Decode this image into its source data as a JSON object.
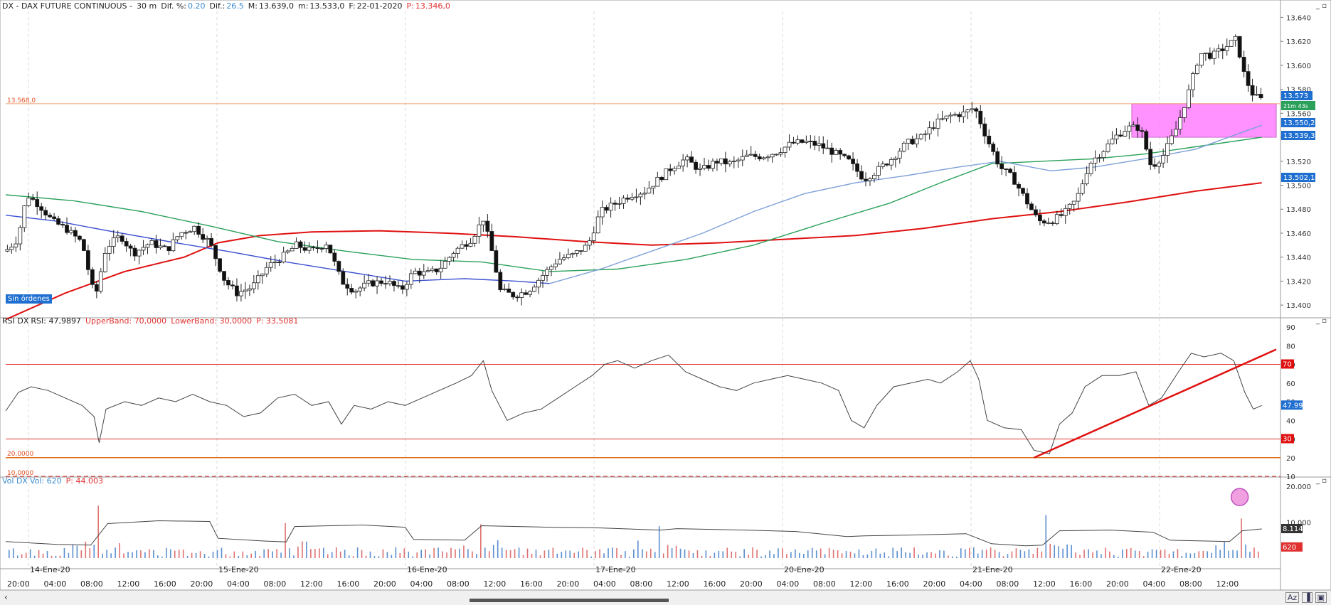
{
  "header": {
    "symbol": "DX - DAX FUTURE CONTINUOUS -",
    "interval": "30 m",
    "dif_pct_label": "Dif. %:",
    "dif_pct_value": "0.20",
    "dif_label": "Dif.:",
    "dif_value": "26.5",
    "max_label": "M:",
    "max_value": "13.639,0",
    "min_label": "m:",
    "min_value": "13.533,0",
    "date_label": "F:",
    "date_value": "22-01-2020",
    "price_label": "P:",
    "price_value": "13.346,0"
  },
  "rsi_header": {
    "name": "RSI DX",
    "rsi": "RSI: 47,9897",
    "upper": "UpperBand: 70,0000",
    "lower": "LowerBand: 30,0000",
    "p": "P: 33,5081"
  },
  "vol_header": {
    "name": "Vol DX",
    "vol": "Vol: 620",
    "p": "P: 44.003"
  },
  "orders_badge": "Sin órdenes",
  "colors": {
    "ma_red": "#e01010",
    "ma_green": "#2aa05a",
    "ma_blue": "#3a4fd0",
    "ma_lightblue": "#7da0d8",
    "zone": "#ff7fff",
    "level": "#f0a070",
    "rsi_band": "#e03030",
    "vol_up": "#5a8fd0",
    "vol_down": "#e07070"
  },
  "price_axis": {
    "ticks": [
      "13.640",
      "13.620",
      "13.600",
      "13.580",
      "13.560",
      "13.540",
      "13.520",
      "13.500",
      "13.480",
      "13.460",
      "13.440",
      "13.420",
      "13.400"
    ],
    "level_label": "13.568,0",
    "tags": [
      {
        "text": "13.573",
        "color": "#1f6fd1"
      },
      {
        "text": "21m 43s",
        "color": "#2aa05a"
      },
      {
        "text": "13.550,2",
        "color": "#1f6fd1"
      },
      {
        "text": "13.539,3",
        "color": "#1f6fd1"
      },
      {
        "text": "13.502,1",
        "color": "#1f6fd1"
      }
    ]
  },
  "rsi_axis": {
    "ticks": [
      "90",
      "80",
      "70",
      "60",
      "50",
      "40",
      "30",
      "20",
      "10"
    ],
    "band_labels": [
      "20,0000",
      "10,0000"
    ],
    "tags": [
      {
        "text": "70",
        "color": "#e01010"
      },
      {
        "text": "47.99",
        "color": "#1f6fd1"
      },
      {
        "text": "30",
        "color": "#e01010"
      }
    ]
  },
  "vol_axis": {
    "ticks": [
      "20.000",
      "10.000"
    ],
    "tags": [
      {
        "text": "8.114",
        "color": "#333333"
      },
      {
        "text": "620",
        "color": "#e03030"
      }
    ]
  },
  "time_axis": {
    "day_labels": [
      "14-Ene-20",
      "15-Ene-20",
      "16-Ene-20",
      "17-Ene-20",
      "20-Ene-20",
      "21-Ene-20",
      "22-Ene-20"
    ],
    "hour_labels": [
      "20:00",
      "04:00",
      "08:00",
      "12:00",
      "16:00",
      "20:00",
      "04:00",
      "08:00",
      "12:00",
      "16:00",
      "20:00",
      "04:00",
      "08:00",
      "12:00",
      "16:00",
      "20:00",
      "04:00",
      "08:00",
      "12:00",
      "16:00",
      "20:00",
      "04:00",
      "08:00",
      "12:00",
      "16:00",
      "20:00",
      "04:00",
      "08:00",
      "12:00",
      "16:00",
      "20:00",
      "04:00",
      "08:00",
      "12:00"
    ]
  },
  "chart_data": [
    {
      "type": "candlestick",
      "title": "DX - DAX FUTURE CONTINUOUS - 30 m",
      "ylim": [
        13390,
        13645
      ],
      "level": 13568,
      "zone": [
        13540,
        13568
      ],
      "close_path": [
        [
          0,
          13445
        ],
        [
          14,
          13455
        ],
        [
          25,
          13492
        ],
        [
          40,
          13483
        ],
        [
          55,
          13470
        ],
        [
          72,
          13463
        ],
        [
          90,
          13452
        ],
        [
          105,
          13405
        ],
        [
          118,
          13448
        ],
        [
          135,
          13458
        ],
        [
          150,
          13443
        ],
        [
          170,
          13452
        ],
        [
          190,
          13446
        ],
        [
          205,
          13460
        ],
        [
          222,
          13465
        ],
        [
          240,
          13452
        ],
        [
          258,
          13420
        ],
        [
          272,
          13410
        ],
        [
          290,
          13415
        ],
        [
          308,
          13432
        ],
        [
          325,
          13440
        ],
        [
          342,
          13450
        ],
        [
          360,
          13445
        ],
        [
          378,
          13452
        ],
        [
          395,
          13420
        ],
        [
          410,
          13412
        ],
        [
          428,
          13418
        ],
        [
          448,
          13420
        ],
        [
          465,
          13412
        ],
        [
          480,
          13428
        ],
        [
          495,
          13426
        ],
        [
          510,
          13430
        ],
        [
          528,
          13445
        ],
        [
          548,
          13455
        ],
        [
          562,
          13472
        ],
        [
          572,
          13445
        ],
        [
          582,
          13412
        ],
        [
          598,
          13408
        ],
        [
          615,
          13412
        ],
        [
          632,
          13425
        ],
        [
          650,
          13438
        ],
        [
          668,
          13442
        ],
        [
          685,
          13450
        ],
        [
          700,
          13478
        ],
        [
          718,
          13485
        ],
        [
          735,
          13492
        ],
        [
          752,
          13495
        ],
        [
          768,
          13505
        ],
        [
          784,
          13515
        ],
        [
          800,
          13522
        ],
        [
          818,
          13512
        ],
        [
          836,
          13520
        ],
        [
          854,
          13518
        ],
        [
          872,
          13524
        ],
        [
          890,
          13524
        ],
        [
          908,
          13528
        ],
        [
          925,
          13535
        ],
        [
          942,
          13536
        ],
        [
          958,
          13533
        ],
        [
          975,
          13527
        ],
        [
          992,
          13520
        ],
        [
          1010,
          13505
        ],
        [
          1025,
          13512
        ],
        [
          1042,
          13522
        ],
        [
          1060,
          13535
        ],
        [
          1078,
          13540
        ],
        [
          1095,
          13552
        ],
        [
          1112,
          13558
        ],
        [
          1128,
          13560
        ],
        [
          1140,
          13565
        ],
        [
          1155,
          13538
        ],
        [
          1170,
          13515
        ],
        [
          1185,
          13506
        ],
        [
          1200,
          13488
        ],
        [
          1215,
          13470
        ],
        [
          1230,
          13470
        ],
        [
          1245,
          13476
        ],
        [
          1260,
          13488
        ],
        [
          1275,
          13518
        ],
        [
          1290,
          13528
        ],
        [
          1305,
          13540
        ],
        [
          1320,
          13548
        ],
        [
          1335,
          13548
        ],
        [
          1348,
          13515
        ],
        [
          1362,
          13525
        ],
        [
          1378,
          13548
        ],
        [
          1392,
          13578
        ],
        [
          1405,
          13610
        ],
        [
          1420,
          13608
        ],
        [
          1435,
          13615
        ],
        [
          1448,
          13622
        ],
        [
          1458,
          13590
        ],
        [
          1468,
          13575
        ],
        [
          1478,
          13571
        ]
      ],
      "moving_averages": [
        {
          "color": "#e01010",
          "values": [
            [
              0,
              13388
            ],
            [
              70,
              13410
            ],
            [
              140,
              13428
            ],
            [
              210,
              13440
            ],
            [
              250,
              13452
            ],
            [
              300,
              13458
            ],
            [
              360,
              13461
            ],
            [
              440,
              13462
            ],
            [
              520,
              13460
            ],
            [
              600,
              13457
            ],
            [
              680,
              13453
            ],
            [
              760,
              13450
            ],
            [
              840,
              13452
            ],
            [
              920,
              13455
            ],
            [
              1000,
              13458
            ],
            [
              1080,
              13464
            ],
            [
              1160,
              13472
            ],
            [
              1240,
              13478
            ],
            [
              1320,
              13486
            ],
            [
              1400,
              13495
            ],
            [
              1478,
              13502
            ]
          ]
        },
        {
          "color": "#2aa05a",
          "values": [
            [
              0,
              13492
            ],
            [
              80,
              13487
            ],
            [
              160,
              13478
            ],
            [
              240,
              13466
            ],
            [
              320,
              13453
            ],
            [
              400,
              13445
            ],
            [
              480,
              13438
            ],
            [
              560,
              13436
            ],
            [
              640,
              13428
            ],
            [
              720,
              13430
            ],
            [
              800,
              13438
            ],
            [
              880,
              13450
            ],
            [
              960,
              13468
            ],
            [
              1040,
              13485
            ],
            [
              1100,
              13502
            ],
            [
              1160,
              13518
            ],
            [
              1220,
              13520
            ],
            [
              1280,
              13522
            ],
            [
              1340,
              13526
            ],
            [
              1400,
              13532
            ],
            [
              1478,
              13540
            ]
          ]
        },
        {
          "color": "#3a4fd0",
          "values": [
            [
              0,
              13475
            ],
            [
              60,
              13470
            ],
            [
              120,
              13462
            ],
            [
              200,
              13452
            ],
            [
              260,
              13445
            ],
            [
              330,
              13436
            ],
            [
              400,
              13428
            ],
            [
              470,
              13420
            ],
            [
              540,
              13422
            ],
            [
              600,
              13420
            ],
            [
              640,
              13418
            ]
          ]
        },
        {
          "color": "#7da0d8",
          "values": [
            [
              640,
              13418
            ],
            [
              700,
              13430
            ],
            [
              760,
              13445
            ],
            [
              820,
              13460
            ],
            [
              880,
              13478
            ],
            [
              940,
              13493
            ],
            [
              1000,
              13502
            ],
            [
              1060,
              13508
            ],
            [
              1120,
              13515
            ],
            [
              1170,
              13520
            ],
            [
              1230,
              13512
            ],
            [
              1280,
              13515
            ],
            [
              1340,
              13522
            ],
            [
              1400,
              13530
            ],
            [
              1478,
              13550
            ]
          ]
        }
      ]
    },
    {
      "type": "line",
      "title": "RSI DX",
      "ylim": [
        10,
        90
      ],
      "bands": [
        70,
        30,
        20
      ],
      "values": [
        [
          0,
          45
        ],
        [
          15,
          55
        ],
        [
          30,
          58
        ],
        [
          50,
          56
        ],
        [
          70,
          52
        ],
        [
          90,
          48
        ],
        [
          104,
          42
        ],
        [
          110,
          28
        ],
        [
          118,
          46
        ],
        [
          140,
          50
        ],
        [
          160,
          48
        ],
        [
          180,
          52
        ],
        [
          200,
          50
        ],
        [
          220,
          54
        ],
        [
          240,
          50
        ],
        [
          260,
          48
        ],
        [
          280,
          42
        ],
        [
          300,
          44
        ],
        [
          320,
          52
        ],
        [
          340,
          54
        ],
        [
          360,
          48
        ],
        [
          380,
          50
        ],
        [
          395,
          38
        ],
        [
          410,
          48
        ],
        [
          430,
          46
        ],
        [
          450,
          50
        ],
        [
          470,
          48
        ],
        [
          490,
          52
        ],
        [
          510,
          56
        ],
        [
          530,
          60
        ],
        [
          548,
          64
        ],
        [
          562,
          72
        ],
        [
          572,
          56
        ],
        [
          590,
          40
        ],
        [
          610,
          44
        ],
        [
          630,
          46
        ],
        [
          650,
          52
        ],
        [
          670,
          58
        ],
        [
          690,
          64
        ],
        [
          705,
          70
        ],
        [
          720,
          72
        ],
        [
          740,
          68
        ],
        [
          760,
          72
        ],
        [
          780,
          75
        ],
        [
          800,
          66
        ],
        [
          820,
          62
        ],
        [
          840,
          58
        ],
        [
          860,
          56
        ],
        [
          880,
          60
        ],
        [
          900,
          62
        ],
        [
          920,
          64
        ],
        [
          940,
          62
        ],
        [
          960,
          60
        ],
        [
          980,
          56
        ],
        [
          995,
          40
        ],
        [
          1010,
          36
        ],
        [
          1025,
          48
        ],
        [
          1045,
          58
        ],
        [
          1065,
          60
        ],
        [
          1085,
          62
        ],
        [
          1100,
          60
        ],
        [
          1120,
          66
        ],
        [
          1135,
          72
        ],
        [
          1145,
          62
        ],
        [
          1155,
          40
        ],
        [
          1175,
          36
        ],
        [
          1195,
          35
        ],
        [
          1210,
          24
        ],
        [
          1228,
          22
        ],
        [
          1240,
          38
        ],
        [
          1255,
          44
        ],
        [
          1270,
          58
        ],
        [
          1290,
          64
        ],
        [
          1310,
          64
        ],
        [
          1330,
          66
        ],
        [
          1345,
          48
        ],
        [
          1360,
          52
        ],
        [
          1380,
          66
        ],
        [
          1395,
          76
        ],
        [
          1410,
          74
        ],
        [
          1430,
          76
        ],
        [
          1445,
          72
        ],
        [
          1458,
          55
        ],
        [
          1468,
          46
        ],
        [
          1478,
          48
        ]
      ],
      "trendline": [
        [
          1210,
          20
        ],
        [
          1495,
          78
        ]
      ]
    },
    {
      "type": "bar",
      "title": "Vol DX",
      "ylim": [
        0,
        20000
      ],
      "average": [
        [
          0,
          4600
        ],
        [
          60,
          3800
        ],
        [
          100,
          3600
        ],
        [
          120,
          9600
        ],
        [
          180,
          10400
        ],
        [
          240,
          10200
        ],
        [
          250,
          5500
        ],
        [
          300,
          4800
        ],
        [
          330,
          4500
        ],
        [
          340,
          8800
        ],
        [
          420,
          9200
        ],
        [
          470,
          8600
        ],
        [
          480,
          5200
        ],
        [
          540,
          5000
        ],
        [
          560,
          9000
        ],
        [
          640,
          8600
        ],
        [
          700,
          8400
        ],
        [
          770,
          7800
        ],
        [
          790,
          8200
        ],
        [
          870,
          7800
        ],
        [
          930,
          7400
        ],
        [
          990,
          6000
        ],
        [
          1010,
          6200
        ],
        [
          1060,
          6400
        ],
        [
          1130,
          6800
        ],
        [
          1160,
          4000
        ],
        [
          1200,
          3400
        ],
        [
          1220,
          3600
        ],
        [
          1240,
          7600
        ],
        [
          1300,
          7800
        ],
        [
          1350,
          7200
        ],
        [
          1370,
          5000
        ],
        [
          1440,
          4600
        ],
        [
          1455,
          7600
        ],
        [
          1478,
          8114
        ]
      ],
      "spikes": [
        [
          108,
          14600
        ],
        [
          330,
          9800
        ],
        [
          560,
          9400
        ],
        [
          770,
          8900
        ],
        [
          1225,
          12000
        ],
        [
          1452,
          11000
        ]
      ]
    }
  ]
}
